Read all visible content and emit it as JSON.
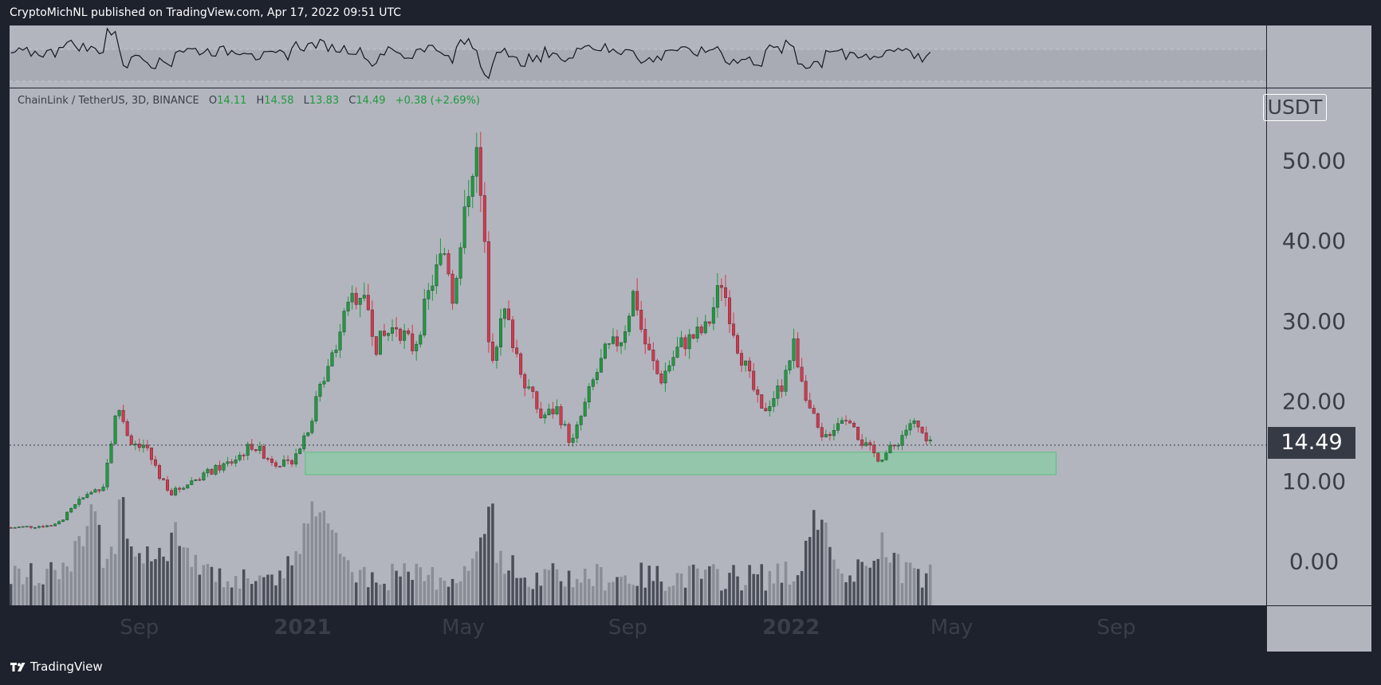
{
  "header": {
    "publisher_text": "CryptoMichNL published on TradingView.com, Apr 17, 2022 09:51 UTC"
  },
  "footer": {
    "brand": "TradingView"
  },
  "legend": {
    "symbol": "ChainLink / TetherUS, 3D, BINANCE",
    "open_label": "O",
    "open": "14.11",
    "high_label": "H",
    "high": "14.58",
    "low_label": "L",
    "low": "13.83",
    "close_label": "C",
    "close": "14.49",
    "change": "+0.38 (+2.69%)"
  },
  "unit": "USDT",
  "last_price": "14.49",
  "colors": {
    "background": "#1e222d",
    "pane": "#b2b5be",
    "up": "#1e9b3d",
    "down": "#d9364a",
    "zone": "#7cd49a",
    "volume_dark": "#4b4f59",
    "volume_light": "#8a8d95"
  },
  "chart_data": {
    "type": "candlestick",
    "y_ticks": [
      "50.00",
      "40.00",
      "30.00",
      "20.00",
      "10.00",
      "0.00"
    ],
    "y_tick_values": [
      50,
      40,
      30,
      20,
      10,
      0
    ],
    "ylim": [
      -5.5,
      59
    ],
    "x_ticks": [
      {
        "label": "Sep",
        "date": "2020-09-01",
        "bold": false
      },
      {
        "label": "2021",
        "date": "2021-01-01",
        "bold": true
      },
      {
        "label": "May",
        "date": "2021-05-01",
        "bold": false
      },
      {
        "label": "Sep",
        "date": "2021-09-01",
        "bold": false
      },
      {
        "label": "2022",
        "date": "2022-01-01",
        "bold": true
      },
      {
        "label": "May",
        "date": "2022-05-01",
        "bold": false
      },
      {
        "label": "Sep",
        "date": "2022-09-01",
        "bold": false
      }
    ],
    "xlim": [
      "2020-05-27",
      "2022-12-22"
    ],
    "support_zone": {
      "from": "2021-01-03",
      "to": "2022-07-18",
      "low": 10.8,
      "high": 13.6
    },
    "price_path": [
      [
        "2020-05-28",
        4.2
      ],
      [
        "2020-07-01",
        4.5
      ],
      [
        "2020-07-20",
        7.8
      ],
      [
        "2020-08-05",
        9.5
      ],
      [
        "2020-08-16",
        19.5
      ],
      [
        "2020-08-25",
        15.0
      ],
      [
        "2020-09-05",
        14.5
      ],
      [
        "2020-09-15",
        11.0
      ],
      [
        "2020-09-25",
        8.5
      ],
      [
        "2020-10-15",
        10.5
      ],
      [
        "2020-11-10",
        12.5
      ],
      [
        "2020-11-24",
        14.5
      ],
      [
        "2020-12-10",
        12.5
      ],
      [
        "2020-12-22",
        12.0
      ],
      [
        "2021-01-06",
        17.0
      ],
      [
        "2021-01-20",
        25.0
      ],
      [
        "2021-02-08",
        33.0
      ],
      [
        "2021-02-16",
        34.0
      ],
      [
        "2021-02-25",
        27.0
      ],
      [
        "2021-03-12",
        29.5
      ],
      [
        "2021-03-25",
        26.5
      ],
      [
        "2021-04-08",
        35.0
      ],
      [
        "2021-04-18",
        39.0
      ],
      [
        "2021-04-24",
        32.0
      ],
      [
        "2021-05-05",
        47.0
      ],
      [
        "2021-05-10",
        52.0
      ],
      [
        "2021-05-16",
        42.0
      ],
      [
        "2021-05-21",
        25.0
      ],
      [
        "2021-06-01",
        31.0
      ],
      [
        "2021-06-15",
        23.0
      ],
      [
        "2021-06-28",
        18.0
      ],
      [
        "2021-07-10",
        19.0
      ],
      [
        "2021-07-21",
        14.5
      ],
      [
        "2021-08-05",
        22.0
      ],
      [
        "2021-08-15",
        26.0
      ],
      [
        "2021-08-28",
        28.0
      ],
      [
        "2021-09-06",
        34.0
      ],
      [
        "2021-09-12",
        28.0
      ],
      [
        "2021-09-25",
        22.5
      ],
      [
        "2021-10-10",
        27.0
      ],
      [
        "2021-10-30",
        29.0
      ],
      [
        "2021-11-10",
        35.0
      ],
      [
        "2021-11-22",
        27.0
      ],
      [
        "2021-12-10",
        18.5
      ],
      [
        "2021-12-25",
        22.0
      ],
      [
        "2022-01-03",
        27.0
      ],
      [
        "2022-01-15",
        19.0
      ],
      [
        "2022-01-24",
        15.0
      ],
      [
        "2022-02-08",
        18.0
      ],
      [
        "2022-02-22",
        15.0
      ],
      [
        "2022-03-08",
        12.8
      ],
      [
        "2022-03-20",
        14.5
      ],
      [
        "2022-04-01",
        17.5
      ],
      [
        "2022-04-08",
        16.0
      ],
      [
        "2022-04-17",
        14.49
      ]
    ],
    "volume_peaks": [
      [
        "2020-07-25",
        6.5
      ],
      [
        "2020-08-18",
        7.0
      ],
      [
        "2020-09-28",
        6.2
      ],
      [
        "2021-01-05",
        7.2
      ],
      [
        "2021-01-20",
        6.0
      ],
      [
        "2021-05-20",
        7.0
      ],
      [
        "2022-01-22",
        6.5
      ],
      [
        "2022-03-10",
        3.2
      ]
    ],
    "rsi_pane": {
      "band": [
        30,
        70
      ],
      "ylim": [
        0,
        100
      ]
    }
  }
}
